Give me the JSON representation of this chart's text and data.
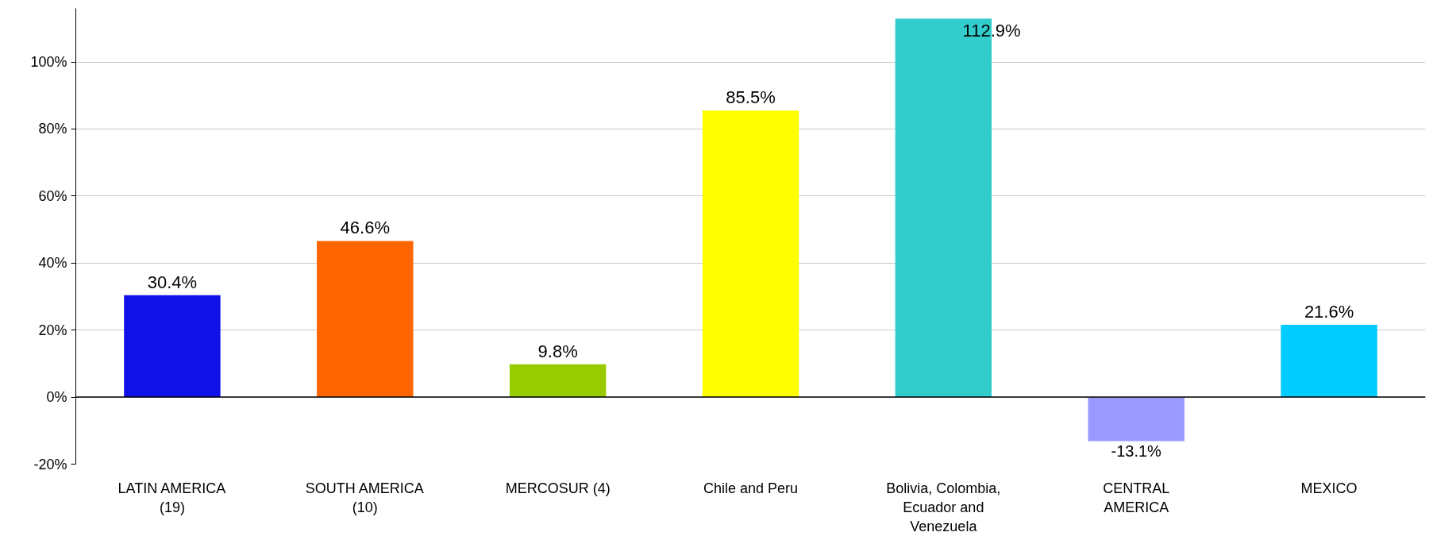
{
  "chart_data": {
    "type": "bar",
    "categories": [
      "LATIN AMERICA\n(19)",
      "SOUTH AMERICA\n(10)",
      "MERCOSUR (4)",
      "Chile and Peru",
      "Bolivia, Colombia,\nEcuador and\nVenezuela",
      "CENTRAL\nAMERICA",
      "MEXICO"
    ],
    "values": [
      30.4,
      46.6,
      9.8,
      85.5,
      112.9,
      -13.1,
      21.6
    ],
    "colors": [
      "#1010e8",
      "#ff6600",
      "#99cc00",
      "#ffff00",
      "#33cccc",
      "#9999ff",
      "#00ccff"
    ],
    "value_labels": [
      "30.4%",
      "46.6%",
      "9.8%",
      "85.5%",
      "112.9%",
      "-13.1%",
      "21.6%"
    ],
    "ylim": [
      -20,
      116
    ],
    "yticks": [
      {
        "value": -20,
        "label": "-20%"
      },
      {
        "value": 0,
        "label": "0%"
      },
      {
        "value": 20,
        "label": "20%"
      },
      {
        "value": 40,
        "label": "40%"
      },
      {
        "value": 60,
        "label": "60%"
      },
      {
        "value": 80,
        "label": "80%"
      },
      {
        "value": 100,
        "label": "100%"
      }
    ],
    "grid": "y"
  }
}
